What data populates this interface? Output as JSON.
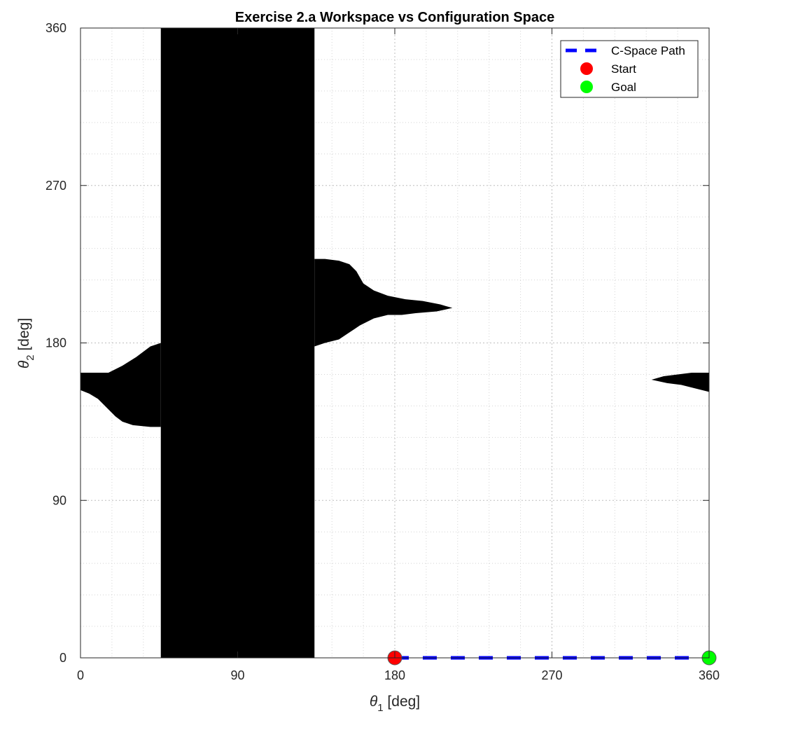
{
  "chart_data": {
    "type": "scatter",
    "title": "Exercise 2.a Workspace vs Configuration Space",
    "xlabel": {
      "symbol": "θ",
      "sub": "1",
      "unit": " [deg]"
    },
    "ylabel": {
      "symbol": "θ",
      "sub": "2",
      "unit": " [deg]"
    },
    "xlim": [
      0,
      360
    ],
    "ylim": [
      0,
      360
    ],
    "xticks": [
      0,
      90,
      180,
      270,
      360
    ],
    "yticks": [
      0,
      90,
      180,
      270,
      360
    ],
    "xtick_labels": [
      "0",
      "90",
      "180",
      "270",
      "360"
    ],
    "ytick_labels": [
      "0",
      "90",
      "180",
      "270",
      "360"
    ],
    "minor_grid_step": 18,
    "grid": true,
    "obstacles": [
      {
        "name": "obstacle-band",
        "points": [
          [
            46,
            0
          ],
          [
            46,
            360
          ],
          [
            134,
            360
          ],
          [
            134,
            0
          ]
        ]
      },
      {
        "name": "obstacle-left-lobe",
        "points": [
          [
            0,
            163
          ],
          [
            16,
            163
          ],
          [
            24,
            167
          ],
          [
            32,
            172
          ],
          [
            40,
            178
          ],
          [
            46,
            180
          ],
          [
            46,
            132
          ],
          [
            40,
            132
          ],
          [
            30,
            133
          ],
          [
            24,
            135
          ],
          [
            20,
            138
          ],
          [
            16,
            142
          ],
          [
            10,
            148
          ],
          [
            5,
            151
          ],
          [
            0,
            153
          ]
        ]
      },
      {
        "name": "obstacle-center-lobe",
        "points": [
          [
            134,
            228
          ],
          [
            140,
            228
          ],
          [
            148,
            227
          ],
          [
            154,
            225
          ],
          [
            158,
            221
          ],
          [
            162,
            214
          ],
          [
            168,
            210
          ],
          [
            176,
            207
          ],
          [
            186,
            205
          ],
          [
            196,
            204
          ],
          [
            206,
            202
          ],
          [
            213,
            200
          ],
          [
            204,
            198
          ],
          [
            192,
            197
          ],
          [
            184,
            196
          ],
          [
            176,
            196
          ],
          [
            168,
            194
          ],
          [
            160,
            190
          ],
          [
            154,
            186
          ],
          [
            148,
            182
          ],
          [
            140,
            180
          ],
          [
            134,
            178
          ]
        ]
      },
      {
        "name": "obstacle-right-lobe",
        "points": [
          [
            327,
            159
          ],
          [
            334,
            161
          ],
          [
            342,
            162
          ],
          [
            350,
            163
          ],
          [
            360,
            163
          ],
          [
            360,
            152
          ],
          [
            352,
            154
          ],
          [
            344,
            156
          ],
          [
            336,
            157
          ]
        ]
      }
    ],
    "obstacle_color": "#000000",
    "series": [
      {
        "name": "C-Space Path",
        "kind": "line",
        "style": "dashed",
        "color": "#0000ff",
        "x": [
          180,
          360
        ],
        "y": [
          0,
          0
        ]
      },
      {
        "name": "Start",
        "kind": "marker",
        "color": "#ff0000",
        "x": [
          180
        ],
        "y": [
          0
        ]
      },
      {
        "name": "Goal",
        "kind": "marker",
        "color": "#00ff00",
        "x": [
          360
        ],
        "y": [
          0
        ]
      }
    ],
    "legend_placement": "top-right"
  }
}
